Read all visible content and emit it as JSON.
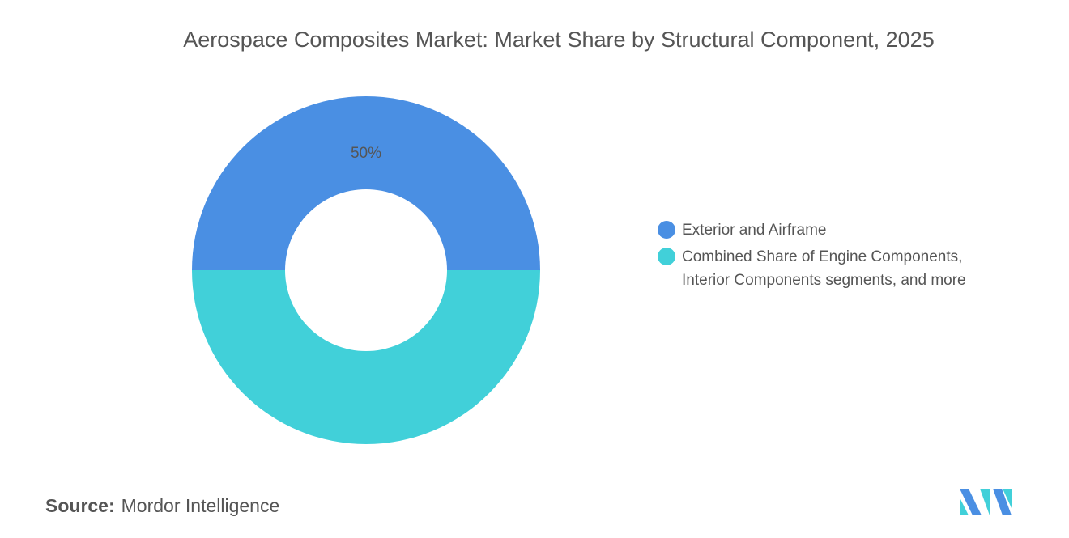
{
  "chart_data": {
    "type": "donut",
    "title": "Aerospace Composites Market: Market Share by Structural Component, 2025",
    "categories": [
      "Exterior and Airframe",
      "Combined Share of Engine Components, Interior Components segments, and more"
    ],
    "values": [
      50,
      50
    ],
    "value_labels": [
      "50%",
      null
    ],
    "colors": [
      "#4a8fe3",
      "#41d0d9"
    ],
    "legend": "right"
  },
  "footer": {
    "source_label": "Source:",
    "source": "Mordor Intelligence"
  }
}
